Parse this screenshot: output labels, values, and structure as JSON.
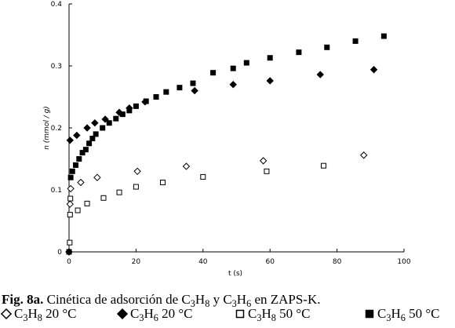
{
  "chart_data": {
    "type": "scatter",
    "x_label": "t (s)",
    "y_label": "n (mmol / g)",
    "caption_label": "Fig. 8a.",
    "caption": "Cinética de adsorción de C3H8 y C3H6 en ZAPS-K.",
    "xlim": [
      0,
      100
    ],
    "xticks": [
      0,
      20,
      40,
      60,
      80,
      100
    ],
    "ylim": [
      0,
      0.4
    ],
    "yticks": [
      0,
      0.1,
      0.2,
      0.3,
      0.4
    ],
    "grid": false,
    "series": [
      {
        "name": "C3H8 20 °C",
        "marker": "diamond",
        "filled": false,
        "color": "#000000",
        "x": [
          0,
          0.3,
          0.5,
          3.5,
          8.4,
          20.4,
          35,
          58,
          88
        ],
        "values": [
          0,
          0.077,
          0.102,
          0.112,
          0.12,
          0.13,
          0.138,
          0.147,
          0.156
        ]
      },
      {
        "name": "C3H6 20 °C",
        "marker": "diamond",
        "filled": true,
        "color": "#000000",
        "x": [
          0,
          0.3,
          2.3,
          5.4,
          7.7,
          10.8,
          15,
          18,
          22.7,
          37.5,
          49,
          60,
          75,
          91
        ],
        "values": [
          0,
          0.18,
          0.188,
          0.2,
          0.208,
          0.214,
          0.225,
          0.232,
          0.242,
          0.26,
          0.27,
          0.276,
          0.286,
          0.294
        ]
      },
      {
        "name": "C3H8 50 °C",
        "marker": "square",
        "filled": false,
        "color": "#000000",
        "x": [
          0,
          0.2,
          0.3,
          0.4,
          2.6,
          5.4,
          10.3,
          15,
          20,
          28,
          40,
          59,
          76
        ],
        "values": [
          0,
          0.015,
          0.06,
          0.086,
          0.067,
          0.078,
          0.087,
          0.096,
          0.105,
          0.112,
          0.121,
          0.13,
          0.139
        ]
      },
      {
        "name": "C3H6 50 °C",
        "marker": "square",
        "filled": true,
        "color": "#000000",
        "x": [
          0,
          0.5,
          1,
          2,
          3,
          4,
          5,
          6,
          7,
          8,
          10,
          12,
          14,
          16,
          18,
          20,
          23,
          26,
          29,
          33,
          37,
          43,
          49,
          53,
          60,
          68.6,
          77,
          85.5,
          94
        ],
        "values": [
          0,
          0.12,
          0.13,
          0.14,
          0.15,
          0.16,
          0.165,
          0.175,
          0.183,
          0.19,
          0.2,
          0.208,
          0.215,
          0.222,
          0.228,
          0.235,
          0.243,
          0.25,
          0.258,
          0.265,
          0.272,
          0.289,
          0.296,
          0.305,
          0.313,
          0.322,
          0.33,
          0.34,
          0.348
        ]
      }
    ]
  }
}
